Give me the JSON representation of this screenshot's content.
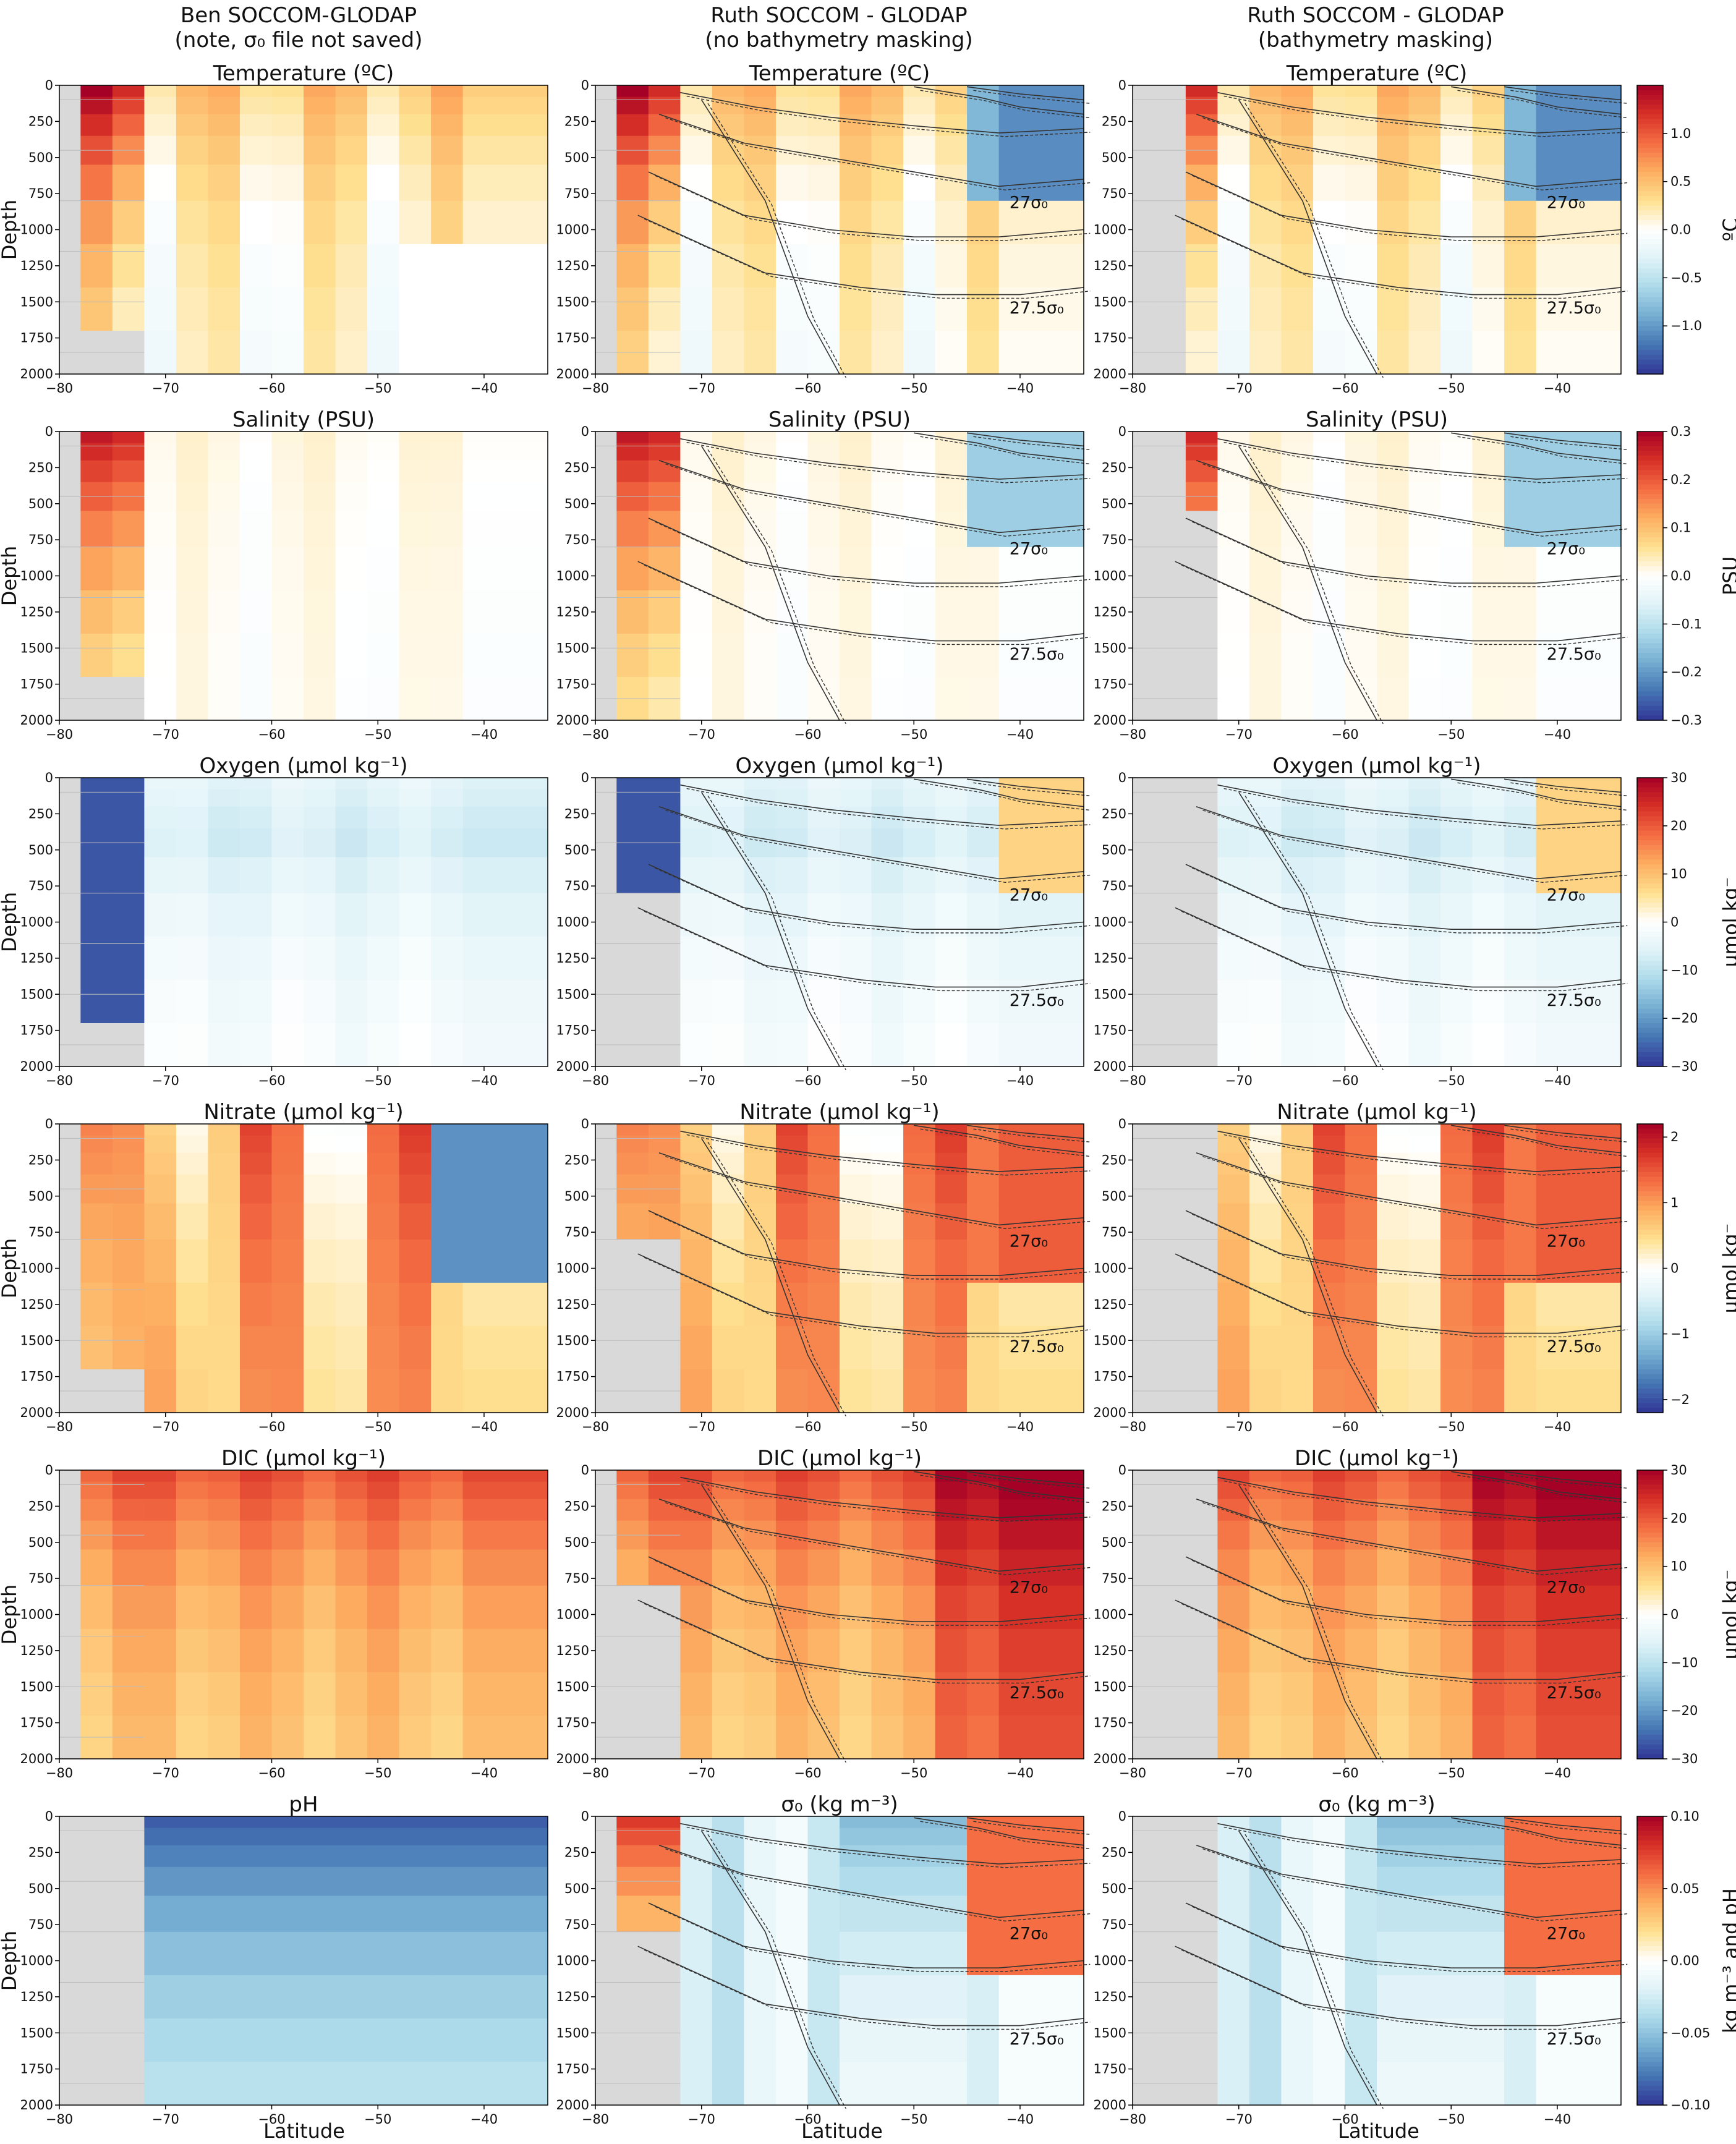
{
  "column_titles": [
    {
      "line1": "Ben SOCCOM-GLODAP",
      "line2": "(note, σ₀ file not saved)"
    },
    {
      "line1": "Ruth SOCCOM - GLODAP",
      "line2": "(no bathymetry masking)"
    },
    {
      "line1": "Ruth SOCCOM - GLODAP",
      "line2": "(bathymetry masking)"
    }
  ],
  "xlabel": "Latitude",
  "ylabel": "Depth",
  "xlim": [
    -80,
    -34
  ],
  "ylim": [
    2000,
    0
  ],
  "x_ticks": [
    -80,
    -70,
    -60,
    -50,
    -40
  ],
  "y_ticks": [
    0,
    250,
    500,
    750,
    1000,
    1250,
    1500,
    1750,
    2000
  ],
  "colormap": "RdYlBu_r",
  "missing_color": "#d9d9d9",
  "isopycnal_labels": [
    "27σ₀",
    "27.5σ₀"
  ],
  "chart_data": [
    {
      "type": "heatmap",
      "row": 0,
      "variable": "Temperature",
      "titles": [
        "Temperature (ºC)",
        "Temperature (ºC)",
        "Temperature (ºC)"
      ],
      "colorbar": {
        "label": "ºC",
        "range": [
          -1.5,
          1.5
        ],
        "ticks": [
          1.0,
          0.5,
          0.0,
          -0.5,
          -1.0
        ],
        "tick_labels": [
          "1.0",
          "0.5",
          "0.0",
          "−0.5",
          "−1.0"
        ]
      }
    },
    {
      "type": "heatmap",
      "row": 1,
      "variable": "Salinity",
      "titles": [
        "Salinity (PSU)",
        "Salinity (PSU)",
        "Salinity (PSU)"
      ],
      "colorbar": {
        "label": "PSU",
        "range": [
          -0.3,
          0.3
        ],
        "ticks": [
          0.3,
          0.2,
          0.1,
          0.0,
          -0.1,
          -0.2,
          -0.3
        ],
        "tick_labels": [
          "0.3",
          "0.2",
          "0.1",
          "0.0",
          "−0.1",
          "−0.2",
          "−0.3"
        ]
      }
    },
    {
      "type": "heatmap",
      "row": 2,
      "variable": "Oxygen",
      "titles": [
        "Oxygen (μmol kg⁻¹)",
        "Oxygen (μmol kg⁻¹)",
        "Oxygen (μmol kg⁻¹)"
      ],
      "colorbar": {
        "label": "μmol kg⁻",
        "range": [
          -30,
          30
        ],
        "ticks": [
          30,
          20,
          10,
          0,
          -10,
          -20,
          -30
        ],
        "tick_labels": [
          "30",
          "20",
          "10",
          "0",
          "−10",
          "−20",
          "−30"
        ]
      }
    },
    {
      "type": "heatmap",
      "row": 3,
      "variable": "Nitrate",
      "titles": [
        "Nitrate (μmol kg⁻¹)",
        "Nitrate (μmol kg⁻¹)",
        "Nitrate (μmol kg⁻¹)"
      ],
      "colorbar": {
        "label": "μmol kg⁻",
        "range": [
          -2.2,
          2.2
        ],
        "ticks": [
          2,
          1,
          0,
          -1,
          -2
        ],
        "tick_labels": [
          "2",
          "1",
          "0",
          "−1",
          "−2"
        ]
      }
    },
    {
      "type": "heatmap",
      "row": 4,
      "variable": "DIC",
      "titles": [
        "DIC (μmol kg⁻¹)",
        "DIC (μmol kg⁻¹)",
        "DIC (μmol kg⁻¹)"
      ],
      "colorbar": {
        "label": "μmol kg⁻",
        "range": [
          -30,
          30
        ],
        "ticks": [
          30,
          20,
          10,
          0,
          -10,
          -20,
          -30
        ],
        "tick_labels": [
          "30",
          "20",
          "10",
          "0",
          "−10",
          "−20",
          "−30"
        ]
      }
    },
    {
      "type": "heatmap",
      "row": 5,
      "variable": "pH / sigma0",
      "titles": [
        "pH",
        "σ₀ (kg m⁻³)",
        "σ₀ (kg m⁻³)"
      ],
      "colorbar": {
        "label": "kg m⁻³ and pH",
        "range": [
          -0.1,
          0.1
        ],
        "ticks": [
          0.1,
          0.05,
          0.0,
          -0.05,
          -0.1
        ],
        "tick_labels": [
          "0.10",
          "0.05",
          "0.00",
          "−0.05",
          "−0.10"
        ]
      }
    }
  ]
}
